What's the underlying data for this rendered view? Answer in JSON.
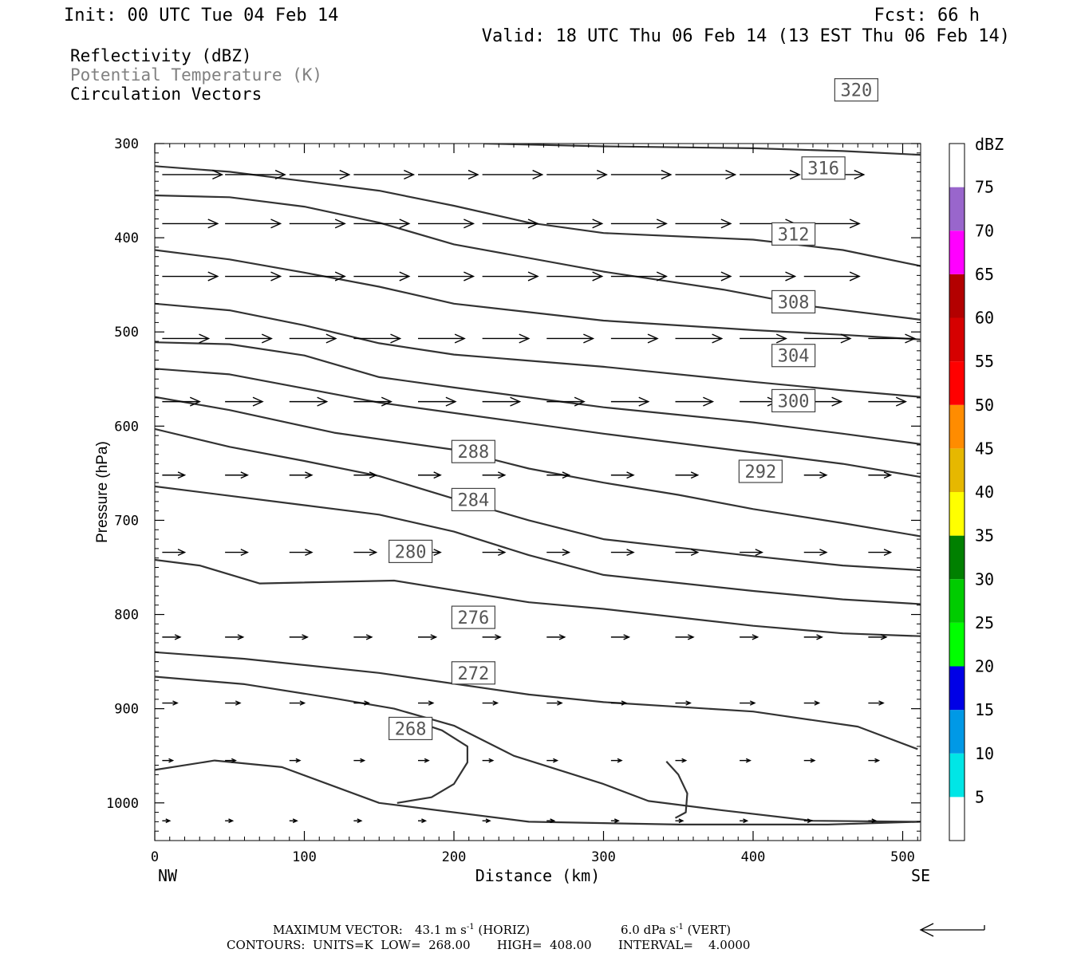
{
  "header": {
    "init": "Init: 00 UTC Tue 04 Feb 14",
    "fcst": "Fcst:   66 h",
    "valid": "Valid: 18 UTC Thu 06 Feb 14 (13 EST Thu 06 Feb 14)",
    "fields": [
      "Reflectivity (dBZ)",
      "Potential Temperature (K)",
      "Circulation Vectors"
    ]
  },
  "colors": {
    "contour": "#333333",
    "field_gray": "#808080",
    "text": "#000000"
  },
  "chart_data": {
    "type": "cross-section",
    "xlabel": "Distance (km)",
    "ylabel": "Pressure (hPa)",
    "xlim": [
      0,
      512
    ],
    "ylim": [
      1040,
      300
    ],
    "x_ticks": [
      0,
      100,
      200,
      300,
      400,
      500
    ],
    "y_ticks": [
      300,
      400,
      500,
      600,
      700,
      800,
      900,
      1000
    ],
    "endpoint_left": "NW",
    "endpoint_right": "SE",
    "colorbar": {
      "title": "dBZ",
      "ticks": [
        "5",
        "10",
        "15",
        "20",
        "25",
        "30",
        "35",
        "40",
        "45",
        "50",
        "55",
        "60",
        "65",
        "70",
        "75"
      ],
      "colors": [
        "#ffffff",
        "#00e6e6",
        "#0099e6",
        "#0000e6",
        "#00ff00",
        "#00cc00",
        "#008000",
        "#ffff00",
        "#e6b800",
        "#ff8c00",
        "#ff0000",
        "#d60000",
        "#b30000",
        "#ff00ff",
        "#9966cc",
        "#ffffff"
      ]
    },
    "contours": [
      {
        "label": "268",
        "label_at": [
          171,
          921
        ],
        "points": [
          [
            0,
            965
          ],
          [
            40,
            955
          ],
          [
            85,
            962
          ],
          [
            150,
            1000
          ],
          [
            250,
            1020
          ],
          [
            350,
            1023
          ],
          [
            450,
            1023
          ],
          [
            512,
            1020
          ]
        ]
      },
      {
        "label": "272",
        "label_at": [
          213,
          862
        ],
        "points": [
          [
            0,
            866
          ],
          [
            60,
            874
          ],
          [
            120,
            889
          ],
          [
            160,
            900
          ],
          [
            200,
            918
          ],
          [
            240,
            950
          ],
          [
            300,
            980
          ],
          [
            330,
            998
          ],
          [
            380,
            1008
          ],
          [
            440,
            1019
          ],
          [
            512,
            1020
          ]
        ]
      },
      {
        "label": "276",
        "label_at": [
          213,
          803
        ],
        "points": [
          [
            0,
            840
          ],
          [
            60,
            847
          ],
          [
            150,
            862
          ],
          [
            250,
            885
          ],
          [
            300,
            893
          ],
          [
            400,
            903
          ],
          [
            470,
            919
          ],
          [
            510,
            943
          ]
        ]
      },
      {
        "label": "280",
        "label_at": [
          171,
          733
        ],
        "points": [
          [
            0,
            742
          ],
          [
            30,
            748
          ],
          [
            70,
            767
          ],
          [
            160,
            764
          ],
          [
            250,
            787
          ],
          [
            300,
            794
          ],
          [
            400,
            812
          ],
          [
            460,
            820
          ],
          [
            512,
            823
          ]
        ]
      },
      {
        "label": "284",
        "label_at": [
          213,
          678
        ],
        "points": [
          [
            0,
            664
          ],
          [
            50,
            674
          ],
          [
            100,
            684
          ],
          [
            150,
            694
          ],
          [
            200,
            712
          ],
          [
            250,
            737
          ],
          [
            300,
            758
          ],
          [
            400,
            775
          ],
          [
            460,
            784
          ],
          [
            512,
            789
          ]
        ]
      },
      {
        "label": "288",
        "label_at": [
          213,
          627
        ],
        "points": [
          [
            0,
            603
          ],
          [
            50,
            622
          ],
          [
            100,
            637
          ],
          [
            150,
            653
          ],
          [
            200,
            677
          ],
          [
            250,
            700
          ],
          [
            300,
            720
          ],
          [
            400,
            738
          ],
          [
            460,
            748
          ],
          [
            512,
            753
          ]
        ]
      },
      {
        "label": "292",
        "label_at": [
          405,
          648
        ],
        "points": [
          [
            0,
            569
          ],
          [
            50,
            583
          ],
          [
            120,
            607
          ],
          [
            200,
            625
          ],
          [
            250,
            645
          ],
          [
            300,
            660
          ],
          [
            350,
            673
          ],
          [
            400,
            688
          ],
          [
            460,
            703
          ],
          [
            512,
            717
          ]
        ]
      },
      {
        "label": "300",
        "label_at": [
          427,
          573
        ],
        "points": [
          [
            0,
            539
          ],
          [
            50,
            545
          ],
          [
            100,
            560
          ],
          [
            150,
            575
          ],
          [
            250,
            597
          ],
          [
            300,
            608
          ],
          [
            400,
            628
          ],
          [
            460,
            640
          ],
          [
            512,
            654
          ]
        ]
      },
      {
        "label": "304",
        "label_at": [
          427,
          525
        ],
        "points": [
          [
            0,
            511
          ],
          [
            50,
            513
          ],
          [
            100,
            525
          ],
          [
            150,
            548
          ],
          [
            200,
            559
          ],
          [
            300,
            580
          ],
          [
            400,
            596
          ],
          [
            460,
            608
          ],
          [
            512,
            619
          ]
        ]
      },
      {
        "label": "308",
        "label_at": [
          427,
          468
        ],
        "points": [
          [
            0,
            470
          ],
          [
            50,
            477
          ],
          [
            100,
            493
          ],
          [
            150,
            512
          ],
          [
            200,
            524
          ],
          [
            300,
            537
          ],
          [
            400,
            553
          ],
          [
            460,
            562
          ],
          [
            512,
            569
          ]
        ]
      },
      {
        "label": "312",
        "label_at": [
          427,
          396
        ],
        "points": [
          [
            0,
            413
          ],
          [
            50,
            423
          ],
          [
            100,
            437
          ],
          [
            150,
            452
          ],
          [
            200,
            470
          ],
          [
            300,
            488
          ],
          [
            400,
            498
          ],
          [
            460,
            503
          ],
          [
            512,
            508
          ]
        ]
      },
      {
        "label": "316",
        "label_at": [
          447,
          326
        ],
        "points": [
          [
            0,
            355
          ],
          [
            50,
            357
          ],
          [
            100,
            367
          ],
          [
            150,
            384
          ],
          [
            200,
            407
          ],
          [
            300,
            436
          ],
          [
            380,
            455
          ],
          [
            440,
            473
          ],
          [
            512,
            487
          ]
        ]
      },
      {
        "label": "320",
        "label_at": [
          469,
          243
        ],
        "points": [
          [
            0,
            324
          ],
          [
            50,
            330
          ],
          [
            100,
            340
          ],
          [
            150,
            350
          ],
          [
            200,
            366
          ],
          [
            250,
            384
          ],
          [
            300,
            395
          ],
          [
            400,
            402
          ],
          [
            460,
            413
          ],
          [
            512,
            430
          ]
        ]
      }
    ],
    "extra_contours": [
      {
        "points": [
          [
            162,
            1000
          ],
          [
            185,
            994
          ],
          [
            200,
            980
          ],
          [
            209,
            957
          ],
          [
            209,
            940
          ],
          [
            192,
            923
          ],
          [
            175,
            914
          ]
        ]
      },
      {
        "points": [
          [
            342,
            956
          ],
          [
            350,
            970
          ],
          [
            356,
            990
          ],
          [
            355,
            1010
          ],
          [
            348,
            1016
          ]
        ]
      },
      {
        "points": [
          [
            220,
            300
          ],
          [
            300,
            303
          ],
          [
            400,
            305
          ],
          [
            460,
            308
          ],
          [
            512,
            312
          ]
        ]
      }
    ],
    "vectors": {
      "x": [
        5,
        47,
        90,
        133,
        176,
        219,
        262,
        305,
        348,
        391,
        434,
        477
      ],
      "rows": [
        {
          "p": 333,
          "u": [
            40,
            40,
            40,
            40,
            40,
            40,
            40,
            40,
            40,
            40,
            40,
            40
          ]
        },
        {
          "p": 385,
          "u": [
            37,
            37,
            37,
            37,
            37,
            37,
            37,
            37,
            37,
            37,
            37,
            37
          ]
        },
        {
          "p": 441,
          "u": [
            37,
            37,
            37,
            37,
            37,
            37,
            37,
            37,
            37,
            37,
            37,
            37
          ]
        },
        {
          "p": 507,
          "u": [
            31,
            31,
            31,
            31,
            31,
            31,
            31,
            31,
            31,
            31,
            31,
            31
          ]
        },
        {
          "p": 574,
          "u": [
            25,
            25,
            25,
            25,
            25,
            25,
            25,
            25,
            25,
            25,
            25,
            25
          ]
        },
        {
          "p": 652,
          "u": [
            15,
            15,
            15,
            15,
            15,
            15,
            15,
            15,
            15,
            15,
            15,
            15
          ]
        },
        {
          "p": 734,
          "u": [
            15,
            15,
            15,
            15,
            15,
            15,
            15,
            15,
            15,
            15,
            15,
            15
          ]
        },
        {
          "p": 824,
          "u": [
            12,
            12,
            12,
            12,
            12,
            12,
            12,
            12,
            12,
            12,
            12,
            12
          ]
        },
        {
          "p": 894,
          "u": [
            10,
            10,
            10,
            10,
            10,
            10,
            10,
            10,
            10,
            10,
            10,
            10
          ]
        },
        {
          "p": 955,
          "u": [
            7,
            7,
            7,
            7,
            7,
            7,
            7,
            7,
            7,
            7,
            7,
            7
          ]
        },
        {
          "p": 1019,
          "u": [
            5,
            5,
            5,
            5,
            5,
            5,
            5,
            5,
            5,
            5,
            5,
            5
          ]
        }
      ]
    },
    "footer": {
      "max_vector_label": "MAXIMUM VECTOR:",
      "horiz_value": "43.1 m s",
      "horiz_exp": "-1",
      "horiz_suffix": " (HORIZ)",
      "vert_value": "6.0 dPa s",
      "vert_exp": "-1",
      "vert_suffix": " (VERT)",
      "contours_line": "CONTOURS:  UNITS=K  LOW=  268.00       HIGH=  408.00       INTERVAL=    4.0000"
    }
  }
}
